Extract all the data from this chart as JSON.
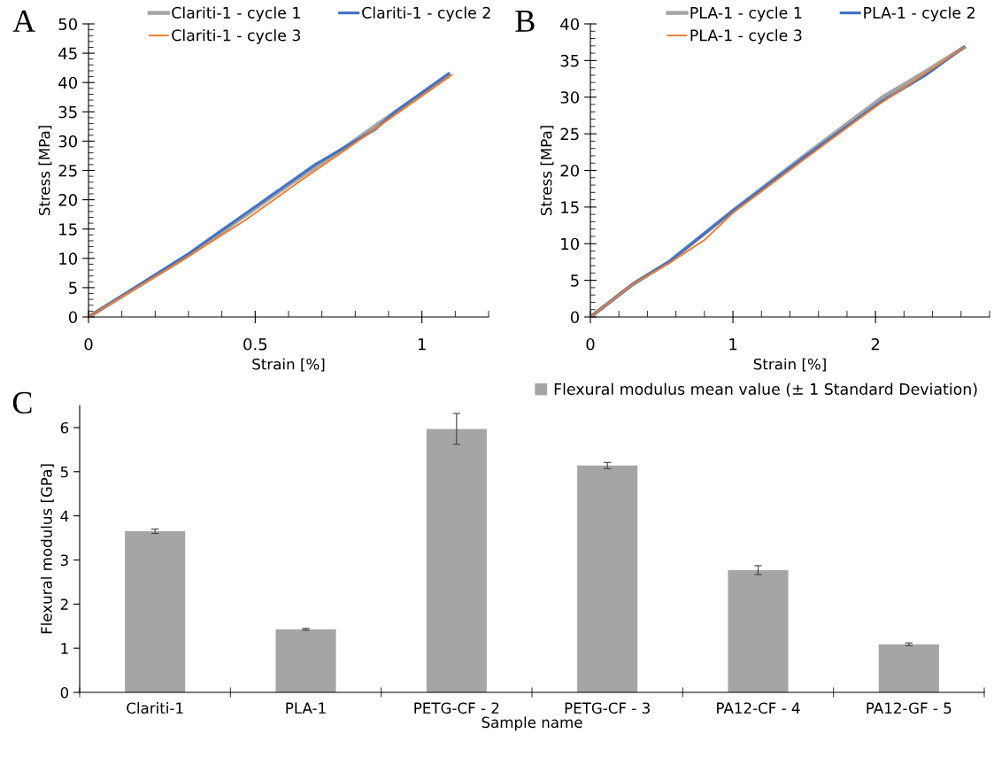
{
  "chart_data": [
    {
      "type": "line",
      "xlabel": "Strain [%]",
      "ylabel": "Stress [MPa]",
      "annotations": [
        "A"
      ],
      "xlim": [
        0,
        1.2
      ],
      "xticks": [
        0,
        0.5,
        1
      ],
      "ylim": [
        0,
        50
      ],
      "yticks": [
        0,
        5,
        10,
        15,
        20,
        25,
        30,
        35,
        40,
        45,
        50
      ],
      "legend": "top",
      "grid": false,
      "series": [
        {
          "name": "Clariti-1 - cycle 1",
          "color": "#a5a5a5",
          "x": [
            0,
            0.3,
            0.45,
            0.6,
            0.77,
            0.87,
            1.08
          ],
          "values": [
            0,
            10.5,
            16.5,
            22.5,
            29,
            33,
            41.3
          ]
        },
        {
          "name": "Clariti-1 - cycle 2",
          "color": "#4472c4",
          "x": [
            0,
            0.3,
            0.45,
            0.68,
            0.77,
            0.86,
            0.92,
            1.08
          ],
          "values": [
            0,
            10.8,
            16.8,
            26,
            29,
            32,
            35,
            41.5
          ]
        },
        {
          "name": "Clariti-1 - cycle 3",
          "color": "#ed7d31",
          "x": [
            0,
            0.29,
            0.47,
            0.63,
            0.77,
            0.87,
            1.09
          ],
          "values": [
            0,
            10,
            16.5,
            23,
            28.5,
            32.5,
            41.3
          ]
        }
      ]
    },
    {
      "type": "line",
      "xlabel": "Strain [%]",
      "ylabel": "Stress [MPa]",
      "annotations": [
        "B"
      ],
      "xlim": [
        0,
        2.8
      ],
      "xticks": [
        0,
        1,
        2
      ],
      "ylim": [
        0,
        40
      ],
      "yticks": [
        0,
        5,
        10,
        15,
        20,
        25,
        30,
        35,
        40
      ],
      "legend": "top",
      "grid": false,
      "series": [
        {
          "name": "PLA-1 - cycle 1",
          "color": "#a5a5a5",
          "x": [
            0,
            0.3,
            0.55,
            1,
            1.5,
            2.05,
            2.35,
            2.62
          ],
          "values": [
            0,
            4.5,
            7.5,
            14.5,
            22,
            30,
            33.5,
            36.8
          ]
        },
        {
          "name": "PLA-1 - cycle 2",
          "color": "#4472c4",
          "x": [
            0,
            0.3,
            0.55,
            1,
            1.5,
            2.05,
            2.35,
            2.62
          ],
          "values": [
            0,
            4.5,
            7.5,
            14.5,
            21.8,
            29.5,
            33,
            36.8
          ]
        },
        {
          "name": "PLA-1 - cycle 3",
          "color": "#ed7d31",
          "x": [
            0,
            0.3,
            0.55,
            0.8,
            1,
            1.5,
            2,
            2.62
          ],
          "values": [
            0,
            4.5,
            7.3,
            10.5,
            14.2,
            21.5,
            28.7,
            36.8
          ]
        }
      ]
    },
    {
      "type": "bar",
      "xlabel": "Sample name",
      "ylabel": "Flexural modulus [GPa]",
      "annotations": [
        "C"
      ],
      "ylim": [
        0,
        6.5
      ],
      "yticks": [
        0,
        1,
        2,
        3,
        4,
        5,
        6
      ],
      "legend": "top right",
      "grid": false,
      "categories": [
        "Clariti-1",
        "PLA-1",
        "PETG-CF - 2",
        "PETG-CF - 3",
        "PA12-CF - 4",
        "PA12-GF - 5"
      ],
      "series": [
        {
          "name": "Flexural modulus mean value (± 1 Standard Deviation)",
          "color": "#a5a5a5",
          "values": [
            3.65,
            1.43,
            5.97,
            5.14,
            2.77,
            1.09
          ],
          "errors": [
            0.05,
            0.02,
            0.35,
            0.07,
            0.1,
            0.03
          ]
        }
      ]
    }
  ]
}
